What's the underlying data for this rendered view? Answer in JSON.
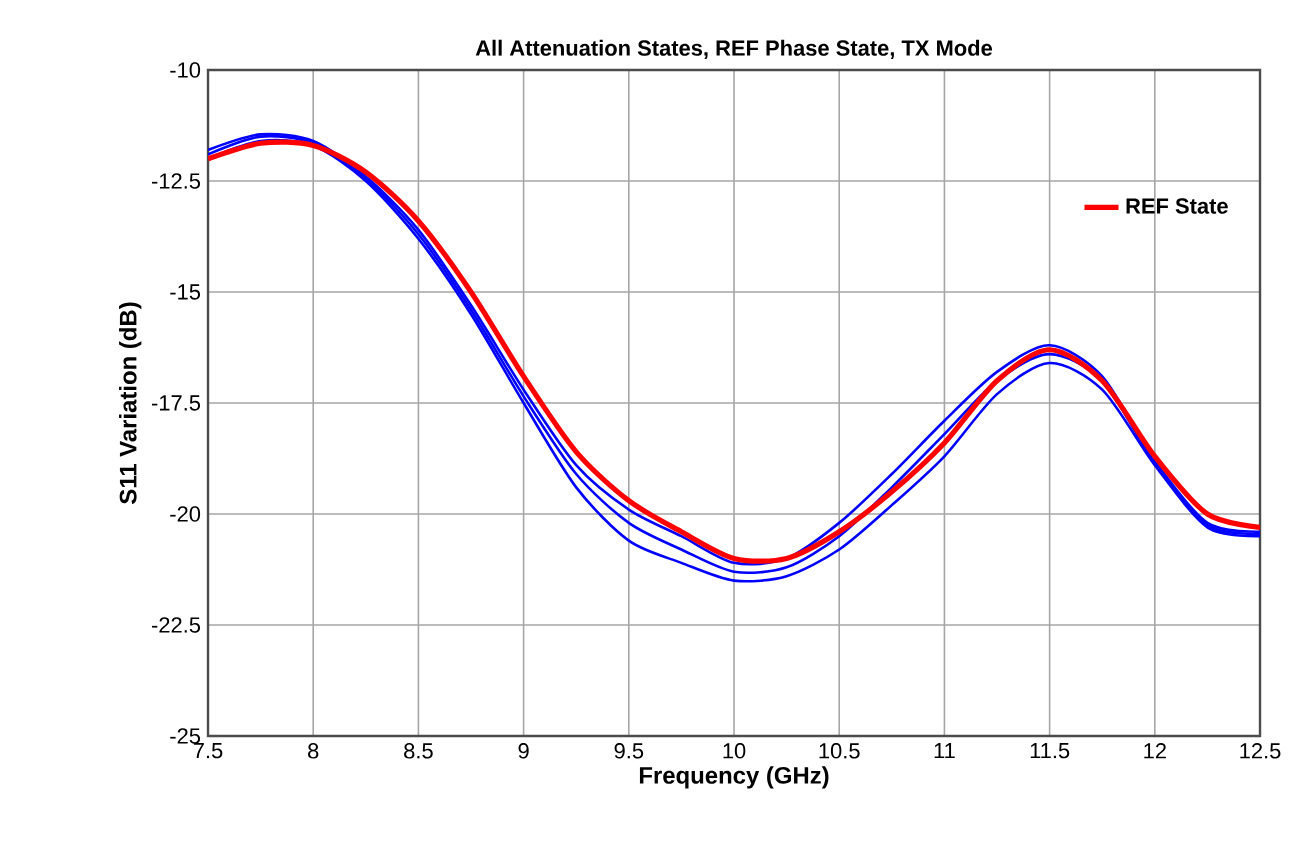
{
  "chart_data": {
    "type": "line",
    "title": "All Attenuation States, REF Phase State, TX Mode",
    "xlabel": "Frequency (GHz)",
    "ylabel": "S11 Variation (dB)",
    "x": [
      7.5,
      7.75,
      8.0,
      8.25,
      8.5,
      8.75,
      9.0,
      9.25,
      9.5,
      9.75,
      10.0,
      10.25,
      10.5,
      10.75,
      11.0,
      11.25,
      11.5,
      11.75,
      12.0,
      12.25,
      12.5
    ],
    "series": [
      {
        "color": "#0000ff",
        "values": [
          -11.8,
          -11.45,
          -11.6,
          -12.4,
          -13.6,
          -15.3,
          -17.2,
          -18.9,
          -19.9,
          -20.5,
          -21.1,
          -21.0,
          -20.2,
          -19.1,
          -17.9,
          -16.8,
          -16.2,
          -16.9,
          -18.8,
          -20.2,
          -20.4
        ]
      },
      {
        "color": "#0000ff",
        "values": [
          -11.9,
          -11.5,
          -11.65,
          -12.45,
          -13.7,
          -15.4,
          -17.35,
          -19.1,
          -20.2,
          -20.8,
          -21.3,
          -21.2,
          -20.5,
          -19.4,
          -18.2,
          -17.0,
          -16.4,
          -17.0,
          -18.85,
          -20.25,
          -20.45
        ]
      },
      {
        "color": "#0000ff",
        "values": [
          -12.0,
          -11.6,
          -11.7,
          -12.5,
          -13.8,
          -15.5,
          -17.5,
          -19.4,
          -20.6,
          -21.1,
          -21.5,
          -21.4,
          -20.8,
          -19.8,
          -18.7,
          -17.3,
          -16.6,
          -17.2,
          -18.9,
          -20.3,
          -20.5
        ]
      },
      {
        "name": "REF State",
        "color": "#ff0000",
        "values": [
          -12.0,
          -11.65,
          -11.7,
          -12.3,
          -13.4,
          -15.0,
          -16.9,
          -18.6,
          -19.7,
          -20.4,
          -21.0,
          -21.0,
          -20.4,
          -19.5,
          -18.4,
          -17.0,
          -16.3,
          -17.0,
          -18.7,
          -20.0,
          -20.3
        ]
      }
    ],
    "xlim": [
      7.5,
      12.5
    ],
    "ylim": [
      -25,
      -10
    ],
    "xticks": [
      7.5,
      8,
      8.5,
      9,
      9.5,
      10,
      10.5,
      11,
      11.5,
      12,
      12.5
    ],
    "yticks": [
      -25,
      -22.5,
      -20,
      -17.5,
      -15,
      -12.5,
      -10
    ],
    "grid": true,
    "legend": "top right",
    "marker": "none",
    "line_style": "solid"
  }
}
